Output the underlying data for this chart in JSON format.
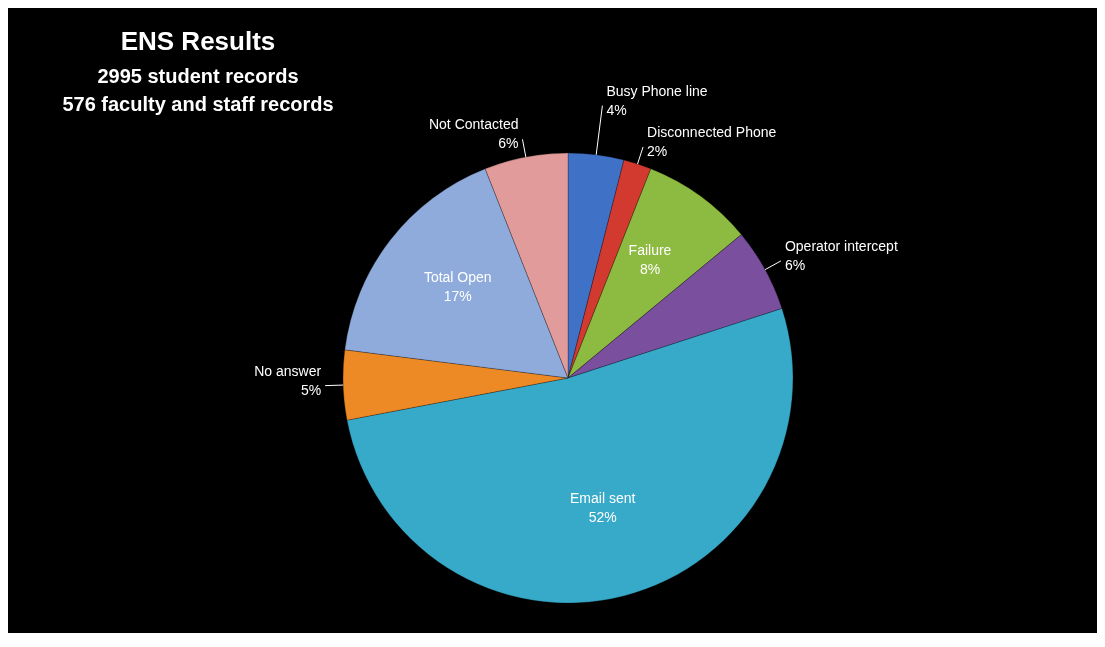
{
  "chart_data": {
    "type": "pie",
    "title": "ENS Results",
    "subtitle": "2995 student records\n576 faculty and staff records",
    "categories": [
      "Busy Phone line",
      "Disconnected Phone",
      "Failure",
      "Operator intercept",
      "Email sent",
      "No answer",
      "Total Open",
      "Not Contacted"
    ],
    "values": [
      4,
      2,
      8,
      6,
      52,
      5,
      17,
      6
    ],
    "value_labels": [
      "4%",
      "2%",
      "8%",
      "6%",
      "52%",
      "5%",
      "17%",
      "6%"
    ],
    "colors": [
      "#3f72c6",
      "#d23a30",
      "#8dba40",
      "#7a4f9e",
      "#37a9c9",
      "#ee8a25",
      "#8eabdc",
      "#e29b9b"
    ]
  }
}
